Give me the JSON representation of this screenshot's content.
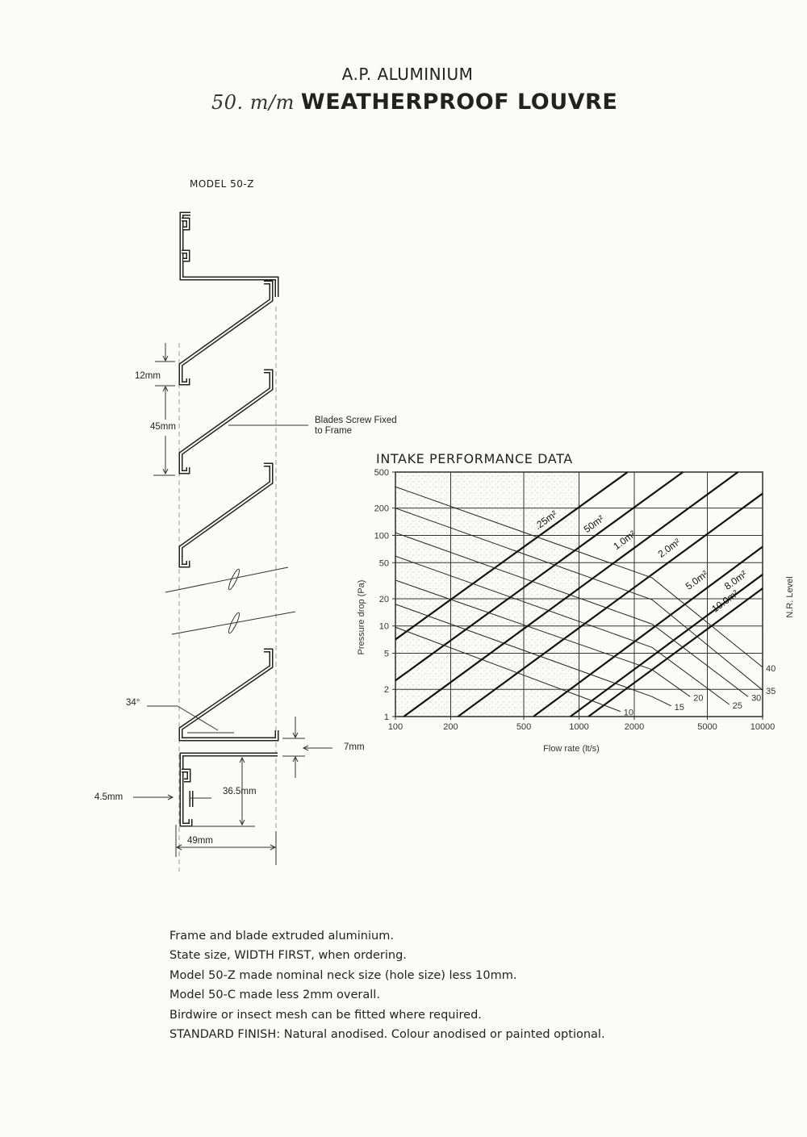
{
  "header": {
    "company": "A.P. ALUMINIUM",
    "title_handwritten": "50. m/m",
    "title": "WEATHERPROOF LOUVRE"
  },
  "drawing": {
    "model": "MODEL 50-Z",
    "dim_blade_lip": "12mm",
    "dim_pitch": "45mm",
    "callout_line1": "Blades Screw Fixed",
    "callout_line2": "to Frame",
    "dim_angle": "34°",
    "dim_flange": "7mm",
    "dim_frame_thickness": "4.5mm",
    "dim_frame_depth": "36.5mm",
    "dim_overall_width": "49mm"
  },
  "chart_data": {
    "type": "line",
    "title": "INTAKE PERFORMANCE DATA",
    "xlabel": "Flow rate (lt/s)",
    "ylabel": "Pressure drop (Pa)",
    "right_label": "N.R. Level",
    "xscale": "log",
    "yscale": "log",
    "xlim": [
      100,
      10000
    ],
    "ylim": [
      1,
      500
    ],
    "xticks": [
      100,
      200,
      500,
      1000,
      2000,
      5000,
      10000
    ],
    "yticks": [
      1,
      2,
      5,
      10,
      20,
      50,
      100,
      200,
      500
    ],
    "grid": true,
    "background": "stippled grey shading in left region",
    "free_area_series": [
      {
        "name": ".25m²",
        "points": [
          [
            100,
            7.1
          ],
          [
            1840,
            500
          ]
        ],
        "label_at": [
          675,
          138
        ]
      },
      {
        "name": "50m²",
        "points": [
          [
            100,
            2.5
          ],
          [
            3680,
            500
          ]
        ],
        "label_at": [
          1233,
          125
        ]
      },
      {
        "name": "1.0m²",
        "points": [
          [
            111,
            1
          ],
          [
            7340,
            500
          ]
        ],
        "label_at": [
          1810,
          83
        ]
      },
      {
        "name": "2.0m²",
        "points": [
          [
            219,
            1
          ],
          [
            10000,
            290
          ]
        ],
        "label_at": [
          3170,
          68
        ]
      },
      {
        "name": "5.0m²",
        "points": [
          [
            564,
            1
          ],
          [
            10000,
            75
          ]
        ],
        "label_at": [
          4480,
          30
        ]
      },
      {
        "name": "8.0m²",
        "points": [
          [
            897,
            1
          ],
          [
            10000,
            37
          ]
        ],
        "label_at": [
          7300,
          30
        ]
      },
      {
        "name": "10.0m²",
        "points": [
          [
            1125,
            1
          ],
          [
            10000,
            26
          ]
        ],
        "label_at": [
          6400,
          17.6
        ]
      }
    ],
    "nr_level_series": [
      {
        "name": "40",
        "points": [
          [
            100,
            344
          ],
          [
            2500,
            34
          ],
          [
            10000,
            3.5
          ]
        ]
      },
      {
        "name": "35",
        "points": [
          [
            100,
            200
          ],
          [
            2500,
            19.5
          ],
          [
            10000,
            1.96
          ]
        ]
      },
      {
        "name": "30",
        "points": [
          [
            100,
            107
          ],
          [
            2500,
            10.5
          ],
          [
            8340,
            1.66
          ]
        ]
      },
      {
        "name": "25",
        "points": [
          [
            100,
            59
          ],
          [
            2500,
            5.8
          ],
          [
            6580,
            1.36
          ]
        ]
      },
      {
        "name": "20",
        "points": [
          [
            100,
            32
          ],
          [
            2500,
            3.3
          ],
          [
            4030,
            1.66
          ]
        ]
      },
      {
        "name": "15",
        "points": [
          [
            100,
            17.4
          ],
          [
            2500,
            1.66
          ],
          [
            3175,
            1.31
          ]
        ]
      },
      {
        "name": "10",
        "points": [
          [
            100,
            9.7
          ],
          [
            1680,
            1.14
          ]
        ]
      }
    ]
  },
  "notes": [
    "Frame and blade extruded aluminium.",
    "State size, WIDTH FIRST, when ordering.",
    "Model 50-Z made nominal neck size (hole size) less 10mm.",
    "Model 50-C made less 2mm overall.",
    "Birdwire or insect mesh can be fitted where required.",
    "STANDARD FINISH: Natural anodised. Colour anodised or painted optional."
  ],
  "colors": {
    "ink": "#1c1c1c",
    "paper": "#fbfbf9",
    "stipple": "#9a9a9a"
  }
}
